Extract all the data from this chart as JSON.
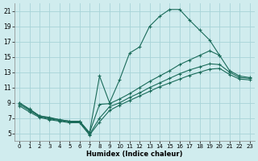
{
  "background_color": "#d0ecee",
  "grid_color": "#a8d4d8",
  "line_color": "#1a6b5a",
  "xlabel": "Humidex (Indice chaleur)",
  "xlim": [
    -0.5,
    23.5
  ],
  "ylim": [
    4.0,
    22.0
  ],
  "xticks": [
    0,
    1,
    2,
    3,
    4,
    5,
    6,
    7,
    8,
    9,
    10,
    11,
    12,
    13,
    14,
    15,
    16,
    17,
    18,
    19,
    20,
    21,
    22,
    23
  ],
  "yticks": [
    5,
    7,
    9,
    11,
    13,
    15,
    17,
    19,
    21
  ],
  "line1": {
    "x": [
      0,
      1,
      2,
      3,
      4,
      5,
      6,
      7,
      8,
      9,
      10,
      11,
      12,
      13,
      14,
      15,
      16,
      17,
      18,
      19,
      20
    ],
    "y": [
      9.0,
      8.2,
      7.3,
      7.1,
      6.8,
      6.6,
      6.6,
      5.1,
      12.5,
      9.0,
      12.0,
      15.5,
      16.3,
      19.0,
      20.3,
      21.2,
      21.2,
      19.8,
      18.5,
      17.2,
      15.2
    ]
  },
  "line2": {
    "x": [
      0,
      1,
      2,
      3,
      4,
      5,
      6,
      7,
      8,
      9,
      10,
      11,
      12,
      13,
      14,
      15,
      16,
      17,
      18,
      19,
      20,
      21,
      22,
      23
    ],
    "y": [
      9.0,
      8.1,
      7.3,
      7.0,
      6.8,
      6.6,
      6.6,
      5.1,
      8.8,
      8.9,
      9.5,
      10.2,
      11.0,
      11.8,
      12.5,
      13.2,
      14.0,
      14.6,
      15.2,
      15.8,
      15.2,
      13.2,
      12.5,
      12.3
    ]
  },
  "line3": {
    "x": [
      0,
      1,
      2,
      3,
      4,
      5,
      6,
      7,
      8,
      9,
      10,
      11,
      12,
      13,
      14,
      15,
      16,
      17,
      18,
      19,
      20,
      21,
      22,
      23
    ],
    "y": [
      8.8,
      8.0,
      7.2,
      6.9,
      6.7,
      6.5,
      6.5,
      4.9,
      7.0,
      8.5,
      9.0,
      9.7,
      10.3,
      11.0,
      11.6,
      12.2,
      12.8,
      13.3,
      13.7,
      14.1,
      14.0,
      13.0,
      12.3,
      12.2
    ]
  },
  "line4": {
    "x": [
      0,
      1,
      2,
      3,
      4,
      5,
      6,
      7,
      8,
      9,
      10,
      11,
      12,
      13,
      14,
      15,
      16,
      17,
      18,
      19,
      20,
      21,
      22,
      23
    ],
    "y": [
      8.6,
      7.8,
      7.1,
      6.8,
      6.6,
      6.4,
      6.4,
      4.8,
      6.5,
      8.0,
      8.7,
      9.3,
      9.9,
      10.5,
      11.1,
      11.6,
      12.1,
      12.6,
      13.0,
      13.4,
      13.5,
      12.7,
      12.1,
      12.0
    ]
  }
}
